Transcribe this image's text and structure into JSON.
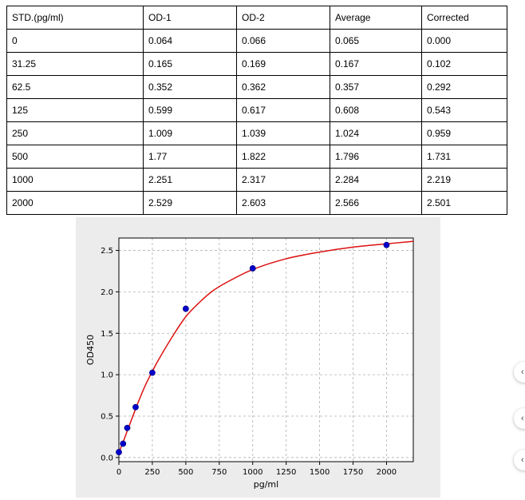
{
  "table": {
    "headers": [
      "STD.(pg/ml)",
      "OD-1",
      "OD-2",
      "Average",
      "Corrected"
    ],
    "rows": [
      [
        "0",
        "0.064",
        "0.066",
        "0.065",
        "0.000"
      ],
      [
        "31.25",
        "0.165",
        "0.169",
        "0.167",
        "0.102"
      ],
      [
        "62.5",
        "0.352",
        "0.362",
        "0.357",
        "0.292"
      ],
      [
        "125",
        "0.599",
        "0.617",
        "0.608",
        "0.543"
      ],
      [
        "250",
        "1.009",
        "1.039",
        "1.024",
        "0.959"
      ],
      [
        "500",
        "1.77",
        "1.822",
        "1.796",
        "1.731"
      ],
      [
        "1000",
        "2.251",
        "2.317",
        "2.284",
        "2.219"
      ],
      [
        "2000",
        "2.529",
        "2.603",
        "2.566",
        "2.501"
      ]
    ]
  },
  "chart_data": {
    "type": "scatter",
    "title": "",
    "xlabel": "pg/ml",
    "ylabel": "OD450",
    "xlim": [
      0,
      2200
    ],
    "ylim": [
      -0.05,
      2.65
    ],
    "x_ticks": [
      0,
      250,
      500,
      750,
      1000,
      1250,
      1500,
      1750,
      2000
    ],
    "y_ticks": [
      0.0,
      0.5,
      1.0,
      1.5,
      2.0,
      2.5
    ],
    "x_tick_labels": [
      "0",
      "250",
      "500",
      "750",
      "1000",
      "1250",
      "1500",
      "1750",
      "2000"
    ],
    "y_tick_labels": [
      "0.0",
      "0.5",
      "1.0",
      "1.5",
      "2.0",
      "2.5"
    ],
    "grid": true,
    "points": {
      "x": [
        0,
        31.25,
        62.5,
        125,
        250,
        500,
        1000,
        2000
      ],
      "y": [
        0.065,
        0.167,
        0.357,
        0.608,
        1.024,
        1.796,
        2.284,
        2.566
      ],
      "color": "#0000cc"
    },
    "fit_curve": {
      "x": [
        0,
        30,
        60,
        100,
        150,
        200,
        250,
        300,
        400,
        500,
        600,
        700,
        800,
        1000,
        1250,
        1500,
        1750,
        2000,
        2200
      ],
      "y": [
        0.06,
        0.18,
        0.31,
        0.48,
        0.69,
        0.88,
        1.04,
        1.19,
        1.46,
        1.7,
        1.87,
        2.01,
        2.11,
        2.27,
        2.4,
        2.48,
        2.54,
        2.58,
        2.61
      ],
      "color": "#dd1111"
    }
  }
}
